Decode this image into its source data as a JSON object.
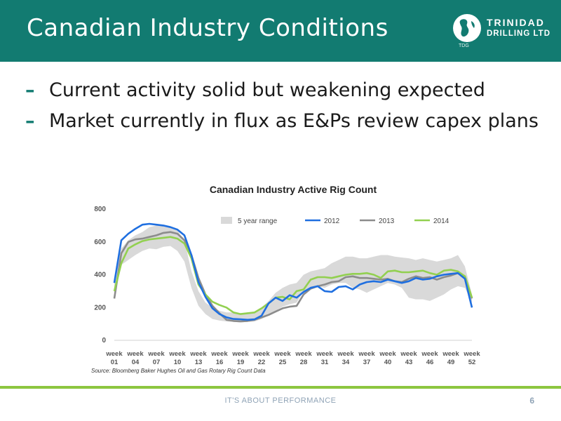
{
  "slide": {
    "title": "Canadian Industry Conditions",
    "bullets": [
      "Current activity solid but weakening expected",
      "Market currently in flux as E&Ps review capex plans"
    ],
    "source": "Source: Bloomberg Baker Hughes Oil and Gas Rotary Rig Count Data",
    "footer": "IT'S ABOUT PERFORMANCE",
    "page_number": "6"
  },
  "logo": {
    "line1": "TRINIDAD",
    "line2": "DRILLING LTD",
    "sub": "TDG"
  },
  "colors": {
    "header": "#127b71",
    "accent_rule": "#8cc63f",
    "range": "#d9d9d9",
    "s2012": "#1f6fe0",
    "s2013": "#8c8c8c",
    "s2014": "#92d050"
  },
  "chart_data": {
    "type": "line",
    "title": "Canadian Industry Active Rig Count",
    "x_ticks": [
      {
        "week": 1,
        "label": "week 01"
      },
      {
        "week": 4,
        "label": "week 04"
      },
      {
        "week": 7,
        "label": "week 07"
      },
      {
        "week": 10,
        "label": "week 10"
      },
      {
        "week": 13,
        "label": "week 13"
      },
      {
        "week": 16,
        "label": "week 16"
      },
      {
        "week": 19,
        "label": "week 19"
      },
      {
        "week": 22,
        "label": "week 22"
      },
      {
        "week": 25,
        "label": "week 25"
      },
      {
        "week": 28,
        "label": "week 28"
      },
      {
        "week": 31,
        "label": "week 31"
      },
      {
        "week": 34,
        "label": "week 34"
      },
      {
        "week": 37,
        "label": "week 37"
      },
      {
        "week": 40,
        "label": "week 40"
      },
      {
        "week": 43,
        "label": "week 43"
      },
      {
        "week": 46,
        "label": "week 46"
      },
      {
        "week": 49,
        "label": "week 49"
      },
      {
        "week": 52,
        "label": "week 52"
      }
    ],
    "y_ticks": [
      0,
      200,
      400,
      600,
      800
    ],
    "ylim": [
      0,
      800
    ],
    "xlim": [
      1,
      52
    ],
    "grid": false,
    "legend_position": "top",
    "weeks": [
      1,
      2,
      3,
      4,
      5,
      6,
      7,
      8,
      9,
      10,
      11,
      12,
      13,
      14,
      15,
      16,
      17,
      18,
      19,
      20,
      21,
      22,
      23,
      24,
      25,
      26,
      27,
      28,
      29,
      30,
      31,
      32,
      33,
      34,
      35,
      36,
      37,
      38,
      39,
      40,
      41,
      42,
      43,
      44,
      45,
      46,
      47,
      48,
      49,
      50,
      51,
      52
    ],
    "range": {
      "name": "5 year range",
      "low": [
        250,
        460,
        490,
        520,
        545,
        560,
        555,
        570,
        575,
        545,
        480,
        320,
        210,
        160,
        130,
        120,
        115,
        112,
        110,
        112,
        115,
        130,
        150,
        180,
        205,
        220,
        230,
        300,
        320,
        330,
        320,
        340,
        350,
        350,
        320,
        310,
        290,
        310,
        330,
        350,
        340,
        320,
        260,
        250,
        250,
        240,
        260,
        280,
        310,
        330,
        320,
        230
      ],
      "high": [
        380,
        560,
        610,
        640,
        660,
        690,
        700,
        700,
        690,
        670,
        610,
        420,
        300,
        230,
        200,
        180,
        170,
        170,
        165,
        170,
        175,
        200,
        240,
        290,
        320,
        340,
        350,
        400,
        420,
        430,
        440,
        470,
        490,
        510,
        510,
        500,
        500,
        510,
        520,
        520,
        510,
        505,
        500,
        490,
        500,
        490,
        480,
        490,
        500,
        520,
        450,
        280
      ]
    },
    "series": [
      {
        "name": "2012",
        "values": [
          350,
          610,
          650,
          680,
          705,
          710,
          705,
          700,
          690,
          675,
          640,
          520,
          355,
          265,
          195,
          160,
          140,
          130,
          128,
          125,
          128,
          150,
          225,
          260,
          240,
          275,
          260,
          295,
          320,
          330,
          300,
          295,
          325,
          330,
          310,
          340,
          355,
          360,
          355,
          370,
          360,
          350,
          360,
          380,
          370,
          375,
          390,
          400,
          405,
          410,
          375,
          200
        ]
      },
      {
        "name": "2013",
        "values": [
          255,
          530,
          600,
          615,
          620,
          630,
          640,
          655,
          660,
          650,
          610,
          520,
          380,
          280,
          210,
          165,
          125,
          118,
          115,
          118,
          125,
          140,
          155,
          175,
          195,
          205,
          210,
          280,
          315,
          330,
          340,
          355,
          360,
          385,
          390,
          380,
          380,
          375,
          370,
          375,
          360,
          355,
          375,
          390,
          380,
          385,
          370,
          385,
          395,
          410,
          390,
          255
        ]
      },
      {
        "name": "2014",
        "values": [
          300,
          470,
          560,
          585,
          605,
          615,
          620,
          625,
          630,
          620,
          590,
          500,
          340,
          280,
          235,
          215,
          200,
          170,
          160,
          165,
          170,
          195,
          225,
          260,
          265,
          250,
          300,
          310,
          370,
          385,
          385,
          380,
          390,
          400,
          405,
          405,
          410,
          400,
          380,
          420,
          425,
          415,
          415,
          420,
          425,
          410,
          400,
          425,
          430,
          420,
          390,
          260
        ]
      }
    ]
  }
}
